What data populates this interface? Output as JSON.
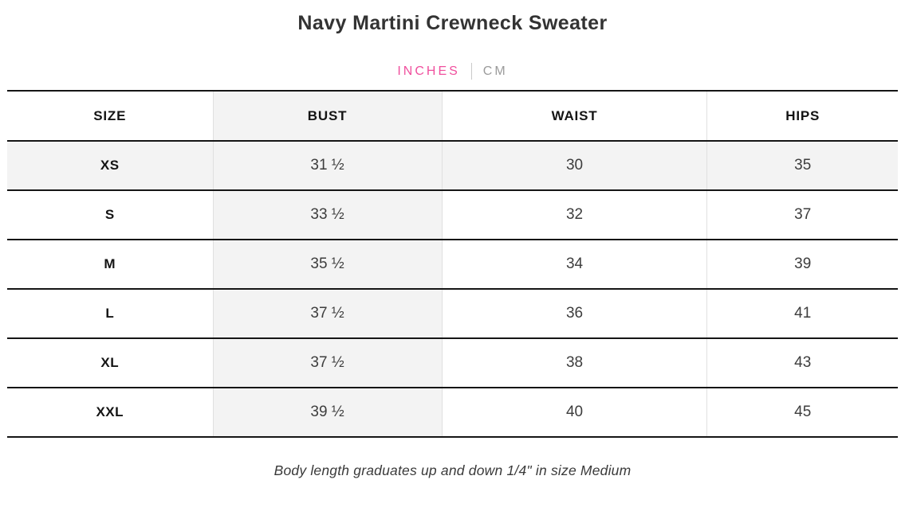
{
  "title": "Navy Martini Crewneck Sweater",
  "unit_toggle": {
    "inches_label": "INCHES",
    "cm_label": "CM",
    "active_unit": "INCHES"
  },
  "table": {
    "columns": [
      "SIZE",
      "BUST",
      "WAIST",
      "HIPS"
    ],
    "rows": [
      {
        "size": "XS",
        "bust": "31 ½",
        "waist": "30",
        "hips": "35",
        "highlighted": true
      },
      {
        "size": "S",
        "bust": "33 ½",
        "waist": "32",
        "hips": "37",
        "highlighted": false
      },
      {
        "size": "M",
        "bust": "35 ½",
        "waist": "34",
        "hips": "39",
        "highlighted": false
      },
      {
        "size": "L",
        "bust": "37 ½",
        "waist": "36",
        "hips": "41",
        "highlighted": false
      },
      {
        "size": "XL",
        "bust": "37 ½",
        "waist": "38",
        "hips": "43",
        "highlighted": false
      },
      {
        "size": "XXL",
        "bust": "39 ½",
        "waist": "40",
        "hips": "45",
        "highlighted": false
      }
    ]
  },
  "footnote": "Body length graduates up and down 1/4\" in size Medium",
  "colors": {
    "accent_pink": "#f0509e",
    "inactive_gray": "#9b9b9b",
    "shaded_cell": "#f3f3f3",
    "rule_dark": "#151515",
    "rule_light": "#e0e0e0"
  }
}
